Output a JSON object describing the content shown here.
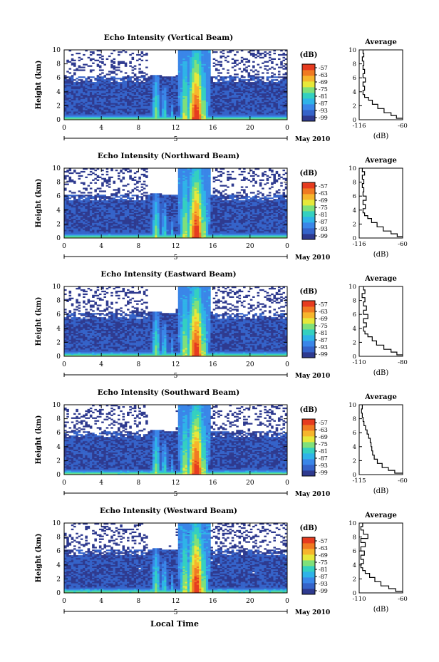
{
  "figure": {
    "x_axis_title": "Local Time",
    "date_label": "May 2010",
    "day_marker": "5",
    "colorbar_unit": "(dB)",
    "colorbar_ticks": [
      "-57",
      "-63",
      "-69",
      "-75",
      "-81",
      "-87",
      "-93",
      "-99"
    ],
    "profile_title": "Average",
    "profile_unit": "(dB)",
    "heatmap_y_label": "Height (km)",
    "colormap": [
      "#2e3a8f",
      "#3563c9",
      "#3a86e8",
      "#2fb3e8",
      "#34d0c0",
      "#7fe07a",
      "#e6e83a",
      "#f6b52c",
      "#f07a22",
      "#e63b1f"
    ]
  },
  "chart_data": [
    {
      "type": "heatmap",
      "title": "Echo Intensity (Vertical Beam)",
      "ylabel": "Height (km)",
      "x_ticks": [
        "0",
        "4",
        "8",
        "12",
        "16",
        "20",
        "0"
      ],
      "y_ticks": [
        "0",
        "2",
        "4",
        "6",
        "8",
        "10"
      ],
      "xlim": [
        0,
        24
      ],
      "ylim": [
        0,
        10
      ],
      "zlim": [
        -99,
        -57
      ],
      "colorbar_unit": "(dB)",
      "colorbar_ticks": [
        "-57",
        "-63",
        "-69",
        "-75",
        "-81",
        "-87",
        "-93",
        "-99"
      ]
    },
    {
      "type": "line",
      "title": "Average",
      "xlabel": "(dB)",
      "x_ticks": [
        "-116",
        "-60"
      ],
      "y_ticks": [
        "0",
        "2",
        "4",
        "6",
        "8",
        "10"
      ],
      "xlim": [
        -116,
        -60
      ],
      "ylim": [
        0,
        10
      ],
      "profile": [
        [
          -60,
          0.2
        ],
        [
          -68,
          0.6
        ],
        [
          -75,
          1.0
        ],
        [
          -84,
          1.6
        ],
        [
          -92,
          2.2
        ],
        [
          -99,
          2.8
        ],
        [
          -104,
          3.2
        ],
        [
          -109,
          3.6
        ],
        [
          -111,
          4.2
        ],
        [
          -109,
          4.8
        ],
        [
          -111,
          5.4
        ],
        [
          -108,
          6.0
        ],
        [
          -111,
          6.6
        ],
        [
          -109,
          7.2
        ],
        [
          -111,
          7.8
        ],
        [
          -110,
          8.4
        ],
        [
          -112,
          9.0
        ],
        [
          -110,
          9.5
        ],
        [
          -111,
          10.0
        ]
      ]
    },
    {
      "type": "heatmap",
      "title": "Echo Intensity (Northward Beam)",
      "ylabel": "Height (km)",
      "x_ticks": [
        "0",
        "4",
        "8",
        "12",
        "16",
        "20",
        "0"
      ],
      "y_ticks": [
        "0",
        "2",
        "4",
        "6",
        "8",
        "10"
      ],
      "xlim": [
        0,
        24
      ],
      "ylim": [
        0,
        10
      ],
      "zlim": [
        -99,
        -57
      ],
      "colorbar_unit": "(dB)",
      "colorbar_ticks": [
        "-57",
        "-63",
        "-69",
        "-75",
        "-81",
        "-87",
        "-93",
        "-99"
      ]
    },
    {
      "type": "line",
      "title": "Average",
      "xlabel": "(dB)",
      "x_ticks": [
        "-116",
        "-60"
      ],
      "y_ticks": [
        "0",
        "2",
        "4",
        "6",
        "8",
        "10"
      ],
      "xlim": [
        -116,
        -60
      ],
      "ylim": [
        0,
        10
      ],
      "profile": [
        [
          -60,
          0.2
        ],
        [
          -67,
          0.6
        ],
        [
          -75,
          1.0
        ],
        [
          -85,
          1.6
        ],
        [
          -93,
          2.2
        ],
        [
          -100,
          2.8
        ],
        [
          -105,
          3.2
        ],
        [
          -109,
          3.6
        ],
        [
          -111,
          4.2
        ],
        [
          -108,
          4.8
        ],
        [
          -111,
          5.4
        ],
        [
          -107,
          6.0
        ],
        [
          -111,
          6.6
        ],
        [
          -110,
          7.2
        ],
        [
          -112,
          7.8
        ],
        [
          -110,
          8.4
        ],
        [
          -112,
          9.0
        ],
        [
          -109,
          9.5
        ],
        [
          -112,
          10.0
        ]
      ]
    },
    {
      "type": "heatmap",
      "title": "Echo Intensity (Eastward Beam)",
      "ylabel": "Height (km)",
      "x_ticks": [
        "0",
        "4",
        "8",
        "12",
        "16",
        "20",
        "0"
      ],
      "y_ticks": [
        "0",
        "2",
        "4",
        "6",
        "8",
        "10"
      ],
      "xlim": [
        0,
        24
      ],
      "ylim": [
        0,
        10
      ],
      "zlim": [
        -99,
        -57
      ],
      "colorbar_unit": "(dB)",
      "colorbar_ticks": [
        "-57",
        "-63",
        "-69",
        "-75",
        "-81",
        "-87",
        "-93",
        "-99"
      ]
    },
    {
      "type": "line",
      "title": "Average",
      "xlabel": "(dB)",
      "x_ticks": [
        "-110",
        "-80"
      ],
      "y_ticks": [
        "0",
        "2",
        "4",
        "6",
        "8",
        "10"
      ],
      "xlim": [
        -110,
        -80
      ],
      "ylim": [
        0,
        10
      ],
      "profile": [
        [
          -80,
          0.2
        ],
        [
          -84,
          0.6
        ],
        [
          -88,
          1.0
        ],
        [
          -93,
          1.6
        ],
        [
          -98,
          2.2
        ],
        [
          -101,
          2.8
        ],
        [
          -104,
          3.2
        ],
        [
          -106,
          3.6
        ],
        [
          -107,
          4.2
        ],
        [
          -105,
          4.8
        ],
        [
          -107,
          5.4
        ],
        [
          -104,
          6.0
        ],
        [
          -107,
          6.6
        ],
        [
          -105,
          7.2
        ],
        [
          -107,
          7.8
        ],
        [
          -106,
          8.4
        ],
        [
          -108,
          9.0
        ],
        [
          -106,
          9.5
        ],
        [
          -107,
          10.0
        ]
      ]
    },
    {
      "type": "heatmap",
      "title": "Echo Intensity (Southward Beam)",
      "ylabel": "Height (km)",
      "x_ticks": [
        "0",
        "4",
        "8",
        "12",
        "16",
        "20",
        "0"
      ],
      "y_ticks": [
        "0",
        "2",
        "4",
        "6",
        "8",
        "10"
      ],
      "xlim": [
        0,
        24
      ],
      "ylim": [
        0,
        10
      ],
      "zlim": [
        -99,
        -57
      ],
      "colorbar_unit": "(dB)",
      "colorbar_ticks": [
        "-57",
        "-63",
        "-69",
        "-75",
        "-81",
        "-87",
        "-93",
        "-99"
      ]
    },
    {
      "type": "line",
      "title": "Average",
      "xlabel": "(dB)",
      "x_ticks": [
        "-115",
        "-60"
      ],
      "y_ticks": [
        "0",
        "2",
        "4",
        "6",
        "8",
        "10"
      ],
      "xlim": [
        -115,
        -60
      ],
      "ylim": [
        0,
        10
      ],
      "profile": [
        [
          -60,
          0.2
        ],
        [
          -70,
          0.6
        ],
        [
          -78,
          1.0
        ],
        [
          -86,
          1.6
        ],
        [
          -92,
          2.2
        ],
        [
          -96,
          2.8
        ],
        [
          -98,
          3.4
        ],
        [
          -99,
          4.0
        ],
        [
          -100,
          4.6
        ],
        [
          -101,
          5.2
        ],
        [
          -103,
          5.8
        ],
        [
          -105,
          6.4
        ],
        [
          -107,
          7.0
        ],
        [
          -109,
          7.6
        ],
        [
          -110,
          8.2
        ],
        [
          -111,
          8.8
        ],
        [
          -112,
          9.4
        ],
        [
          -111,
          10.0
        ]
      ]
    },
    {
      "type": "heatmap",
      "title": "Echo Intensity (Westward Beam)",
      "ylabel": "Height (km)",
      "x_ticks": [
        "0",
        "4",
        "8",
        "12",
        "16",
        "20",
        "0"
      ],
      "y_ticks": [
        "0",
        "2",
        "4",
        "6",
        "8",
        "10"
      ],
      "xlim": [
        0,
        24
      ],
      "ylim": [
        0,
        10
      ],
      "zlim": [
        -99,
        -57
      ],
      "colorbar_unit": "(dB)",
      "colorbar_ticks": [
        "-57",
        "-63",
        "-69",
        "-75",
        "-81",
        "-87",
        "-93",
        "-99"
      ]
    },
    {
      "type": "line",
      "title": "Average",
      "xlabel": "(dB)",
      "x_ticks": [
        "-110",
        "-60"
      ],
      "y_ticks": [
        "0",
        "2",
        "4",
        "6",
        "8",
        "10"
      ],
      "xlim": [
        -110,
        -60
      ],
      "ylim": [
        0,
        10
      ],
      "profile": [
        [
          -60,
          0.2
        ],
        [
          -68,
          0.6
        ],
        [
          -76,
          1.0
        ],
        [
          -85,
          1.6
        ],
        [
          -92,
          2.2
        ],
        [
          -98,
          2.8
        ],
        [
          -103,
          3.2
        ],
        [
          -106,
          3.6
        ],
        [
          -108,
          4.2
        ],
        [
          -105,
          4.8
        ],
        [
          -108,
          5.4
        ],
        [
          -104,
          6.0
        ],
        [
          -108,
          6.6
        ],
        [
          -103,
          7.2
        ],
        [
          -108,
          7.8
        ],
        [
          -100,
          8.4
        ],
        [
          -105,
          9.0
        ],
        [
          -108,
          9.5
        ],
        [
          -106,
          10.0
        ]
      ]
    }
  ]
}
